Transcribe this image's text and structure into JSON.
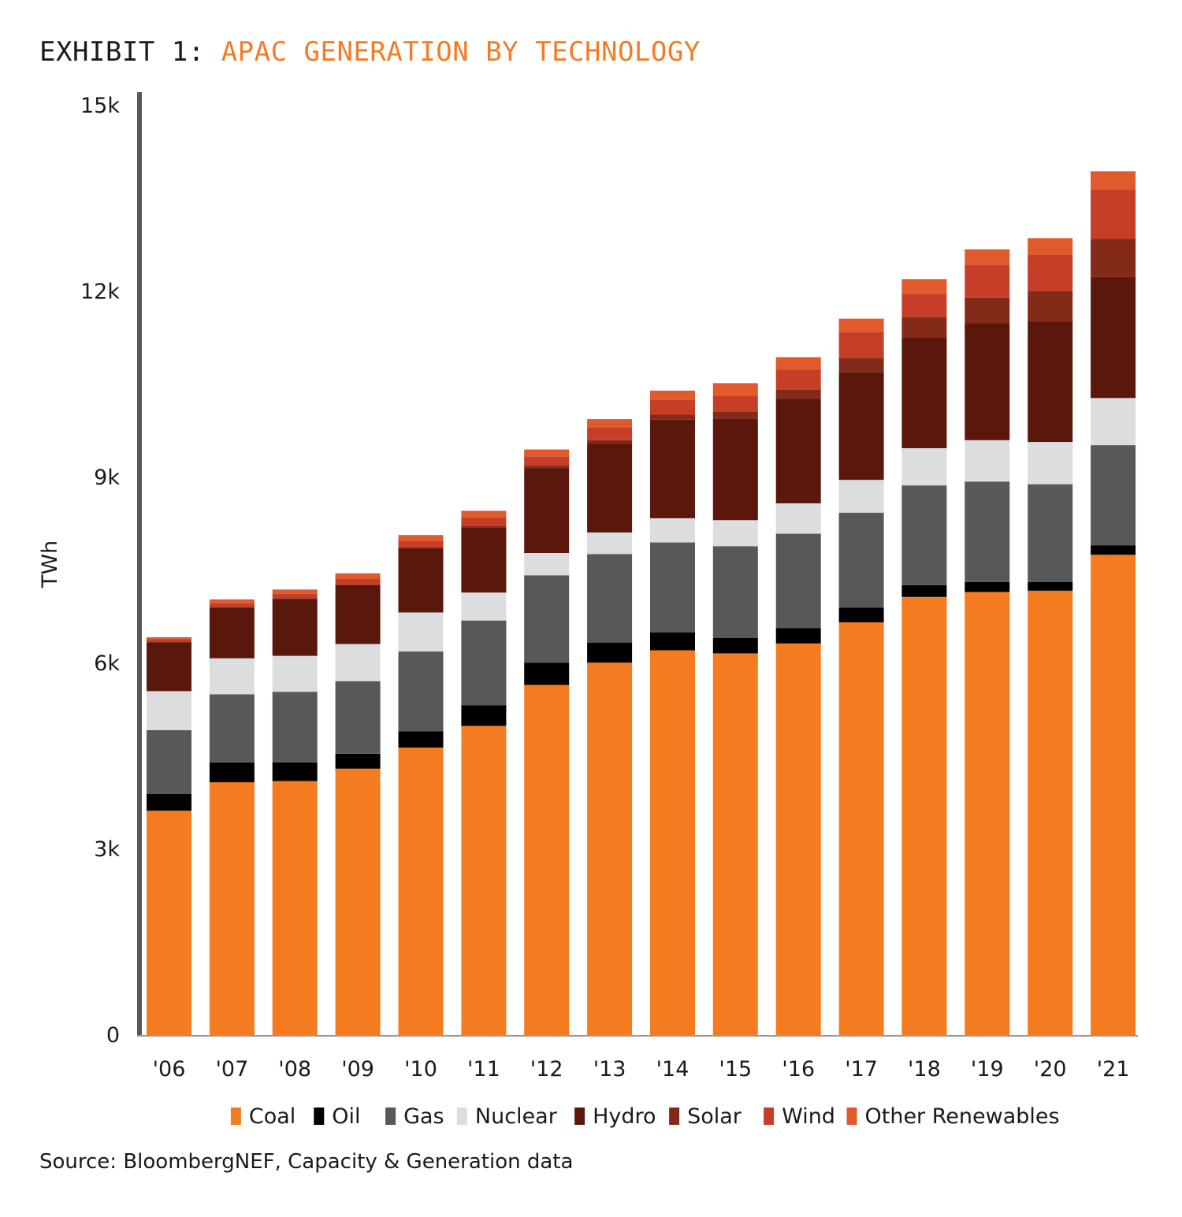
{
  "title": {
    "prefix": "EXHIBIT 1:",
    "main": "APAC GENERATION BY TECHNOLOGY"
  },
  "source": "Source: BloombergNEF, Capacity & Generation data",
  "chart_data": {
    "type": "bar",
    "stacked": true,
    "ylabel": "TWh",
    "ylim": [
      0,
      15000
    ],
    "yticks": [
      {
        "value": 0,
        "label": "0"
      },
      {
        "value": 3000,
        "label": "3k"
      },
      {
        "value": 6000,
        "label": "6k"
      },
      {
        "value": 9000,
        "label": "9k"
      },
      {
        "value": 12000,
        "label": "12k"
      },
      {
        "value": 15000,
        "label": "15k"
      }
    ],
    "grid": false,
    "legend_position": "bottom",
    "categories": [
      "'06",
      "'07",
      "'08",
      "'09",
      "'10",
      "'11",
      "'12",
      "'13",
      "'14",
      "'15",
      "'16",
      "'17",
      "'18",
      "'19",
      "'20",
      "'21"
    ],
    "series": [
      {
        "name": "Coal",
        "color": "#f47b20",
        "values": [
          3620,
          4080,
          4100,
          4300,
          4640,
          4990,
          5650,
          6010,
          6210,
          6160,
          6320,
          6660,
          7070,
          7150,
          7170,
          7750
        ]
      },
      {
        "name": "Oil",
        "color": "#000000",
        "values": [
          270,
          320,
          300,
          240,
          260,
          330,
          360,
          320,
          290,
          250,
          250,
          240,
          190,
          160,
          140,
          150
        ]
      },
      {
        "name": "Gas",
        "color": "#58585a",
        "values": [
          1030,
          1100,
          1140,
          1170,
          1290,
          1370,
          1410,
          1430,
          1450,
          1480,
          1520,
          1530,
          1610,
          1620,
          1580,
          1620
        ]
      },
      {
        "name": "Nuclear",
        "color": "#dcdddf",
        "values": [
          630,
          580,
          580,
          600,
          630,
          450,
          360,
          350,
          390,
          420,
          490,
          530,
          600,
          670,
          680,
          760
        ]
      },
      {
        "name": "Hydro",
        "color": "#5a170c",
        "values": [
          790,
          820,
          920,
          950,
          1030,
          1050,
          1370,
          1430,
          1590,
          1640,
          1690,
          1740,
          1790,
          1890,
          1940,
          1950
        ]
      },
      {
        "name": "Solar",
        "color": "#832a19",
        "values": [
          10,
          10,
          10,
          10,
          20,
          30,
          40,
          60,
          80,
          110,
          150,
          230,
          330,
          410,
          490,
          620
        ]
      },
      {
        "name": "Wind",
        "color": "#c63e27",
        "values": [
          40,
          60,
          70,
          90,
          100,
          130,
          150,
          210,
          240,
          260,
          320,
          410,
          370,
          530,
          590,
          790
        ]
      },
      {
        "name": "Other Renewables",
        "color": "#e05a2b",
        "values": [
          30,
          60,
          70,
          90,
          100,
          110,
          110,
          130,
          150,
          200,
          200,
          220,
          240,
          250,
          270,
          300
        ]
      }
    ]
  }
}
